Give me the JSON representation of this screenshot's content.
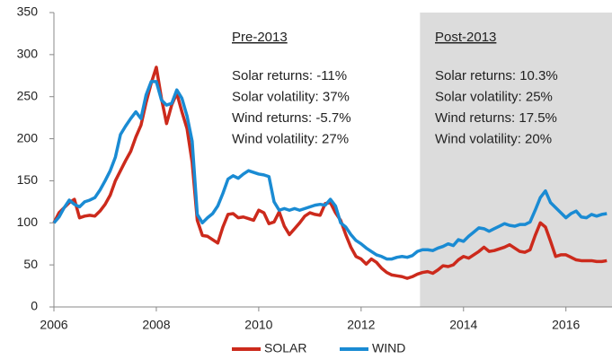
{
  "chart_data": {
    "type": "line",
    "x": [
      2006,
      2006.1,
      2006.2,
      2006.3,
      2006.4,
      2006.5,
      2006.6,
      2006.7,
      2006.8,
      2006.9,
      2007,
      2007.1,
      2007.2,
      2007.3,
      2007.4,
      2007.5,
      2007.6,
      2007.7,
      2007.8,
      2007.9,
      2008,
      2008.1,
      2008.2,
      2008.3,
      2008.4,
      2008.5,
      2008.6,
      2008.7,
      2008.8,
      2008.9,
      2009,
      2009.1,
      2009.2,
      2009.3,
      2009.4,
      2009.5,
      2009.6,
      2009.7,
      2009.8,
      2009.9,
      2010,
      2010.1,
      2010.2,
      2010.3,
      2010.4,
      2010.5,
      2010.6,
      2010.7,
      2010.8,
      2010.9,
      2011,
      2011.1,
      2011.2,
      2011.3,
      2011.4,
      2011.5,
      2011.6,
      2011.7,
      2011.8,
      2011.9,
      2012,
      2012.1,
      2012.2,
      2012.3,
      2012.4,
      2012.5,
      2012.6,
      2012.7,
      2012.8,
      2012.9,
      2013,
      2013.1,
      2013.2,
      2013.3,
      2013.4,
      2013.5,
      2013.6,
      2013.7,
      2013.8,
      2013.9,
      2014,
      2014.1,
      2014.2,
      2014.3,
      2014.4,
      2014.5,
      2014.6,
      2014.7,
      2014.8,
      2014.9,
      2015,
      2015.1,
      2015.2,
      2015.3,
      2015.4,
      2015.5,
      2015.6,
      2015.7,
      2015.8,
      2015.9,
      2016,
      2016.1,
      2016.2,
      2016.3,
      2016.4,
      2016.5,
      2016.6,
      2016.7,
      2016.8
    ],
    "series": [
      {
        "name": "SOLAR",
        "color": "#cc2a1c",
        "values": [
          100,
          112,
          118,
          124,
          128,
          106,
          108,
          109,
          108,
          114,
          122,
          133,
          150,
          162,
          174,
          185,
          202,
          216,
          243,
          266,
          285,
          248,
          218,
          240,
          254,
          232,
          212,
          172,
          103,
          85,
          84,
          80,
          76,
          95,
          110,
          111,
          106,
          107,
          105,
          103,
          115,
          112,
          99,
          101,
          113,
          96,
          86,
          93,
          100,
          108,
          112,
          110,
          109,
          123,
          124,
          112,
          103,
          86,
          71,
          60,
          57,
          51,
          57,
          53,
          46,
          41,
          38,
          37,
          36,
          34,
          36,
          39,
          41,
          42,
          40,
          44,
          49,
          48,
          50,
          56,
          60,
          58,
          62,
          66,
          71,
          66,
          67,
          69,
          71,
          74,
          70,
          66,
          65,
          68,
          85,
          100,
          95,
          78,
          60,
          62,
          62,
          59,
          56,
          55,
          55,
          55,
          54,
          54,
          55
        ]
      },
      {
        "name": "WIND",
        "color": "#1a8bd3",
        "values": [
          100,
          107,
          118,
          127,
          122,
          119,
          125,
          127,
          130,
          139,
          150,
          162,
          178,
          205,
          215,
          224,
          232,
          224,
          252,
          268,
          268,
          246,
          240,
          242,
          258,
          248,
          227,
          197,
          110,
          100,
          106,
          111,
          120,
          135,
          152,
          156,
          153,
          158,
          162,
          160,
          158,
          157,
          155,
          125,
          115,
          117,
          115,
          117,
          115,
          117,
          119,
          121,
          122,
          121,
          128,
          120,
          100,
          95,
          86,
          79,
          75,
          70,
          66,
          62,
          60,
          57,
          57,
          59,
          60,
          59,
          61,
          66,
          68,
          68,
          67,
          70,
          72,
          75,
          73,
          80,
          78,
          84,
          89,
          94,
          93,
          90,
          93,
          96,
          99,
          97,
          96,
          98,
          98,
          101,
          115,
          130,
          138,
          124,
          118,
          112,
          106,
          111,
          114,
          107,
          106,
          110,
          108,
          110,
          111
        ]
      }
    ],
    "xlim": [
      2006,
      2016.9
    ],
    "xticks": [
      2006,
      2008,
      2010,
      2012,
      2014,
      2016
    ],
    "ylim": [
      0,
      350
    ],
    "yticks": [
      0,
      50,
      100,
      150,
      200,
      250,
      300,
      350
    ],
    "grid": false,
    "legend": "bottom",
    "shaded_region": {
      "xlim": [
        2013.15,
        2016.9
      ],
      "color": "#dcdcdc"
    },
    "annotations": [
      {
        "title": "Pre-2013",
        "lines": [
          "Solar returns: -11%",
          "Solar volatility: 37%",
          "Wind returns: -5.7%",
          "Wind volatility: 27%"
        ]
      },
      {
        "title": "Post-2013",
        "lines": [
          "Solar returns: 10.3%",
          "Solar volatility: 25%",
          "Wind returns: 17.5%",
          "Wind volatility: 20%"
        ]
      }
    ]
  }
}
